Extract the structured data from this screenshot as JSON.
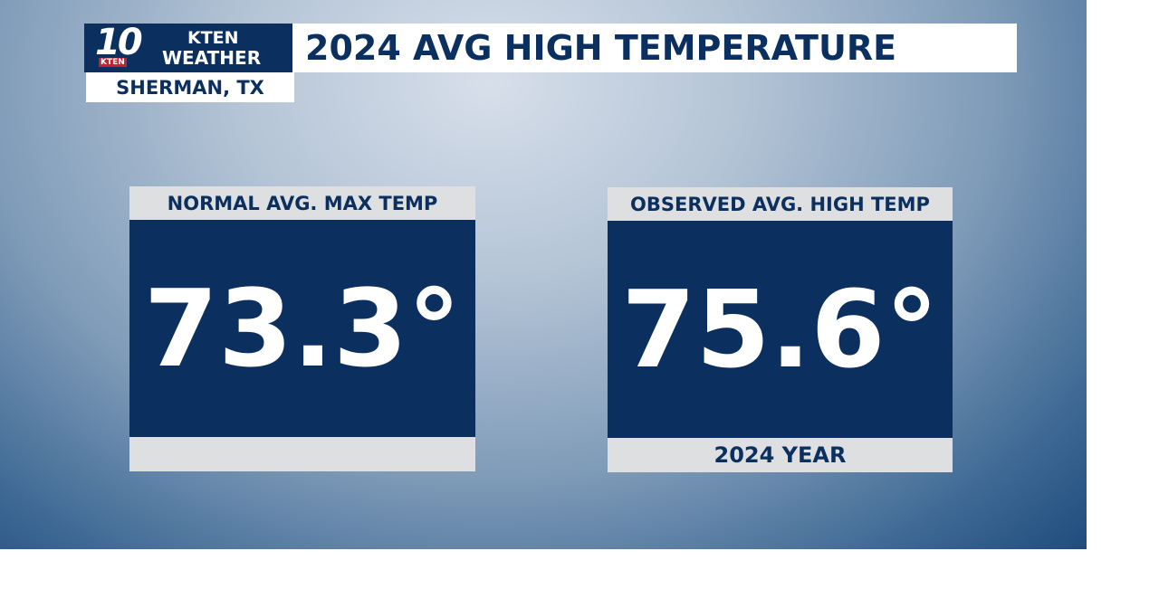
{
  "logo": {
    "number": "10",
    "station_tag": "KTEN",
    "line1": "KTEN",
    "line2": "WEATHER"
  },
  "location": "SHERMAN, TX",
  "title": "2024 AVG HIGH TEMPERATURE",
  "cards": [
    {
      "header": "NORMAL AVG. MAX TEMP",
      "value": "73.3°"
    },
    {
      "header": "OBSERVED AVG. HIGH TEMP",
      "value": "75.6°",
      "footer": "2024 YEAR"
    }
  ]
}
